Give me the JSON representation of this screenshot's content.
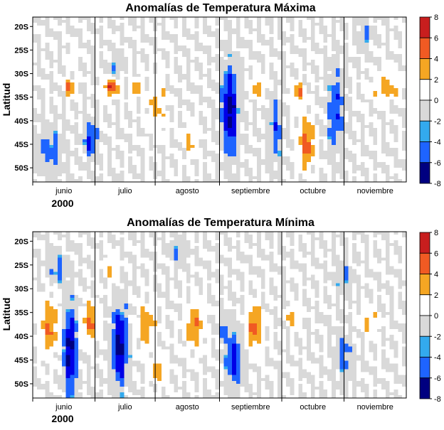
{
  "colors": {
    "scale": [
      "#000080",
      "#0000e6",
      "#1e64ff",
      "#33aaee",
      "#d9d9d9",
      "#ffffff",
      "#f5a623",
      "#f05a23",
      "#c81e1e",
      "#8b0000"
    ],
    "outline": "#000000",
    "neutral_pos": "#d9d9d9",
    "neutral_neg": "#ffffff"
  },
  "chart_data": [
    {
      "type": "heatmap",
      "title": "Anomalías de Temperatura Máxima",
      "ylabel": "Latitud",
      "xlabel": "",
      "year": "2000",
      "y_ticks": [
        "20S",
        "25S",
        "30S",
        "35S",
        "40S",
        "45S",
        "50S"
      ],
      "y_tick_values": [
        -20,
        -25,
        -30,
        -35,
        -40,
        -45,
        -50
      ],
      "x_months": [
        "junio",
        "julio",
        "agosto",
        "septiembre",
        "octubre",
        "noviembre"
      ],
      "colorbar_ticks": [
        8,
        6,
        4,
        2,
        0,
        -2,
        -4,
        -6,
        -8
      ],
      "colorbar_levels": [
        -8,
        -6,
        -4,
        -2,
        0,
        2,
        4,
        6,
        8
      ],
      "xlim": [
        0,
        180
      ],
      "ylim": [
        -53,
        -18
      ],
      "features": [
        {
          "x": 38,
          "y": -33,
          "a": 6,
          "sx": 2.5,
          "sy": 1.2
        },
        {
          "x": 18,
          "y": -33,
          "a": 5,
          "sx": 1.6,
          "sy": 1.2
        },
        {
          "x": 28,
          "y": -44,
          "a": -5,
          "sx": 2.0,
          "sy": 2.5
        },
        {
          "x": 50,
          "y": -33,
          "a": 4,
          "sx": 1.6,
          "sy": 1.2
        },
        {
          "x": 60,
          "y": -36,
          "a": 2.5,
          "sx": 3.0,
          "sy": 4.0
        },
        {
          "x": 8,
          "y": -46,
          "a": -3,
          "sx": 4.0,
          "sy": 3.0
        },
        {
          "x": 95,
          "y": -38,
          "a": -7,
          "sx": 2.5,
          "sy": 6.0
        },
        {
          "x": 108,
          "y": -33,
          "a": 3,
          "sx": 2.2,
          "sy": 1.4
        },
        {
          "x": 128,
          "y": -34,
          "a": 4,
          "sx": 2.2,
          "sy": 1.5
        },
        {
          "x": 132,
          "y": -45,
          "a": 5,
          "sx": 2.5,
          "sy": 3.5
        },
        {
          "x": 117,
          "y": -42,
          "a": -3.5,
          "sx": 2.0,
          "sy": 4.0
        },
        {
          "x": 146,
          "y": -38,
          "a": -4,
          "sx": 2.5,
          "sy": 5.5
        },
        {
          "x": 170,
          "y": -33,
          "a": 3,
          "sx": 4.5,
          "sy": 2.0
        },
        {
          "x": 160,
          "y": -22,
          "a": -2.5,
          "sx": 2.0,
          "sy": 2.0
        },
        {
          "x": 76,
          "y": -44,
          "a": 2.6,
          "sx": 2.0,
          "sy": 2.5
        },
        {
          "x": 40,
          "y": -28,
          "a": -2.2,
          "sx": 2.0,
          "sy": 1.8
        },
        {
          "x": 20,
          "y": -27,
          "a": 2.2,
          "sx": 1.5,
          "sy": 1.3
        }
      ]
    },
    {
      "type": "heatmap",
      "title": "Anomalías de Temperatura Mínima",
      "ylabel": "Latitud",
      "xlabel": "",
      "year": "2000",
      "y_ticks": [
        "20S",
        "25S",
        "30S",
        "35S",
        "40S",
        "45S",
        "50S"
      ],
      "y_tick_values": [
        -20,
        -25,
        -30,
        -35,
        -40,
        -45,
        -50
      ],
      "x_months": [
        "junio",
        "julio",
        "agosto",
        "septiembre",
        "octubre",
        "noviembre"
      ],
      "colorbar_ticks": [
        8,
        6,
        4,
        2,
        0,
        -2,
        -4,
        -6,
        -8
      ],
      "colorbar_levels": [
        -8,
        -6,
        -4,
        -2,
        0,
        2,
        4,
        6,
        8
      ],
      "xlim": [
        0,
        180
      ],
      "ylim": [
        -53,
        -18
      ],
      "features": [
        {
          "x": 8,
          "y": -38,
          "a": 4,
          "sx": 3.0,
          "sy": 4.0
        },
        {
          "x": 18,
          "y": -43,
          "a": -7,
          "sx": 2.0,
          "sy": 6.0
        },
        {
          "x": 28,
          "y": -37,
          "a": 4.5,
          "sx": 2.5,
          "sy": 2.5
        },
        {
          "x": 42,
          "y": -42,
          "a": -7,
          "sx": 2.5,
          "sy": 5.5
        },
        {
          "x": 55,
          "y": -38,
          "a": 3,
          "sx": 3.0,
          "sy": 3.0
        },
        {
          "x": 60,
          "y": -47,
          "a": 3,
          "sx": 2.5,
          "sy": 2.0
        },
        {
          "x": 78,
          "y": -38,
          "a": 4,
          "sx": 3.0,
          "sy": 3.0
        },
        {
          "x": 97,
          "y": -45,
          "a": -5,
          "sx": 2.5,
          "sy": 4.0
        },
        {
          "x": 92,
          "y": -39,
          "a": -3,
          "sx": 1.5,
          "sy": 1.5
        },
        {
          "x": 107,
          "y": -38,
          "a": 5,
          "sx": 2.5,
          "sy": 3.0
        },
        {
          "x": 125,
          "y": -36,
          "a": 3,
          "sx": 2.0,
          "sy": 1.5
        },
        {
          "x": 150,
          "y": -44,
          "a": -3,
          "sx": 2.5,
          "sy": 3.0
        },
        {
          "x": 12,
          "y": -26,
          "a": -2.5,
          "sx": 3.0,
          "sy": 2.0
        },
        {
          "x": 38,
          "y": -26,
          "a": 2.5,
          "sx": 2.0,
          "sy": 1.5
        },
        {
          "x": 162,
          "y": -37,
          "a": 2.4,
          "sx": 3.0,
          "sy": 2.0
        },
        {
          "x": 70,
          "y": -22,
          "a": -2.3,
          "sx": 2.5,
          "sy": 1.8
        },
        {
          "x": 150,
          "y": -28,
          "a": -2.3,
          "sx": 2.5,
          "sy": 2.0
        }
      ]
    }
  ]
}
